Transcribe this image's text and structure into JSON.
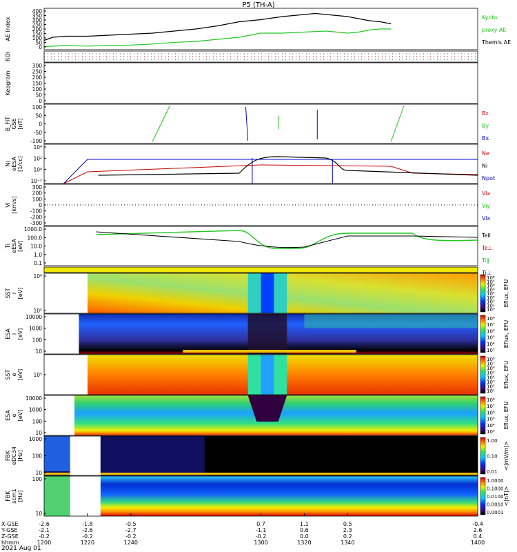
{
  "chart_data": {
    "type": "line",
    "title": "P5 (TH-A)",
    "date_label": "2021 Aug 01",
    "panels": [
      {
        "id": "ae",
        "ylabel": [
          "AE Index"
        ],
        "yticks": [
          "400",
          "350",
          "300",
          "250",
          "200",
          "150",
          "100",
          "50",
          "0"
        ],
        "legend": [
          {
            "text": "Kyoto",
            "color": "#1ec81e"
          },
          {
            "text": "proxy AE",
            "color": "#1ec81e"
          },
          {
            "text": "Themis AE",
            "color": "#000000"
          }
        ],
        "series": [
          {
            "name": "Themis AE",
            "color": "#000000",
            "x": [
              1200,
              1204,
              1210,
              1220,
              1230,
              1240,
              1250,
              1260,
              1270,
              1280,
              1290,
              1300,
              1310,
              1320,
              1325,
              1330,
              1340,
              1345,
              1350,
              1355,
              1360
            ],
            "y": [
              90,
              120,
              130,
              130,
              140,
              150,
              160,
              180,
              200,
              230,
              270,
              290,
              320,
              340,
              350,
              340,
              320,
              300,
              280,
              270,
              250
            ]
          },
          {
            "name": "Kyoto proxy AE",
            "color": "#1ec81e",
            "x": [
              1200,
              1210,
              1220,
              1230,
              1240,
              1250,
              1260,
              1270,
              1280,
              1290,
              1300,
              1310,
              1320,
              1330,
              1340,
              1345,
              1350,
              1355,
              1360
            ],
            "y": [
              30,
              40,
              35,
              40,
              45,
              55,
              70,
              80,
              100,
              120,
              160,
              160,
              170,
              180,
              160,
              170,
              190,
              200,
              200
            ]
          }
        ]
      },
      {
        "id": "roi",
        "ylabel": [
          "ROI"
        ],
        "yticks": []
      },
      {
        "id": "keogram",
        "ylabel": [
          "Keogram"
        ],
        "yticks": [
          "300",
          "250",
          "200",
          "150",
          "100",
          "50",
          "0"
        ]
      },
      {
        "id": "bfit",
        "ylabel": [
          "B_FIT",
          "GSE",
          "[nT]"
        ],
        "yticks": [
          "100",
          "50",
          "0",
          "-50",
          "-100"
        ],
        "legend": [
          {
            "text": "Bz",
            "color": "#cc0000"
          },
          {
            "text": "By",
            "color": "#1ec81e"
          },
          {
            "text": "Bx",
            "color": "#0000cc"
          }
        ]
      },
      {
        "id": "ni",
        "ylabel": [
          "Ni",
          "eESA",
          "[1/cc]"
        ],
        "yticks": [
          "10⁴",
          "10²",
          "10⁰",
          "10⁻²"
        ],
        "legend": [
          {
            "text": "Ne",
            "color": "#cc0000"
          },
          {
            "text": "Ni",
            "color": "#000000"
          },
          {
            "text": "Npot",
            "color": "#0000cc"
          }
        ]
      },
      {
        "id": "vi",
        "ylabel": [
          "Vi",
          "[km/s]"
        ],
        "yticks": [
          "300",
          "200",
          "100",
          "0",
          "-100",
          "-200",
          "-300"
        ],
        "legend": [
          {
            "text": "Vix",
            "color": "#cc0000"
          },
          {
            "text": "Viy",
            "color": "#1ec81e"
          },
          {
            "text": "Vix",
            "color": "#0000cc"
          }
        ]
      },
      {
        "id": "ti",
        "ylabel": [
          "Ti",
          "eESA",
          "[eV]"
        ],
        "yticks": [
          "1000.0",
          "100.0",
          "10.0",
          "1.0",
          "0.1"
        ],
        "legend": [
          {
            "text": "Tell",
            "color": "#000000"
          },
          {
            "text": "Te⊥",
            "color": "#cc0000"
          },
          {
            "text": "Ti‖",
            "color": "#1ec81e"
          },
          {
            "text": "Ti⊥",
            "color": "#0000cc"
          }
        ]
      },
      {
        "id": "sst_i",
        "ylabel": [
          "SST",
          "i",
          "[eV]"
        ],
        "yticks": [
          "10⁶",
          "10⁵"
        ],
        "cbar": {
          "ticks": [
            "10⁸",
            "10⁷",
            "10⁶",
            "10⁵",
            "10⁴",
            "10³",
            "10²",
            "10¹",
            "10⁰"
          ],
          "label": "Eflux, EFU"
        }
      },
      {
        "id": "esa_i",
        "ylabel": [
          "ESA",
          "i",
          "[eV]"
        ],
        "yticks": [
          "10000",
          "1000",
          "100",
          "10"
        ],
        "cbar": {
          "ticks": [
            "10⁸",
            "10⁷",
            "10⁶",
            "10⁵",
            "10⁴",
            "10³"
          ],
          "label": "Eflux, EFU"
        }
      },
      {
        "id": "sst_e",
        "ylabel": [
          "SST",
          "e",
          "[eV]"
        ],
        "yticks": [
          "10⁵"
        ],
        "cbar": {
          "ticks": [
            "10⁸",
            "10⁷",
            "10⁶",
            "10⁵",
            "10⁴",
            "10³",
            "10²",
            "10¹"
          ],
          "label": "Eflux, EFU"
        }
      },
      {
        "id": "esa_e",
        "ylabel": [
          "ESA",
          "e",
          "[eV]"
        ],
        "yticks": [
          "10000",
          "1000",
          "100",
          "10"
        ],
        "cbar": {
          "ticks": [
            "10⁸",
            "10⁷",
            "10⁶",
            "10⁵",
            "10⁴",
            "10³"
          ],
          "label": "Eflux, EFU"
        }
      },
      {
        "id": "fbk_edc",
        "ylabel": [
          "FBK",
          "eDC34",
          "[Hz]"
        ],
        "yticks": [
          "1000",
          "100",
          "10"
        ],
        "cbar": {
          "ticks": [
            "1.00",
            "0.10",
            "0.01"
          ],
          "label": "<|mV/m|>"
        }
      },
      {
        "id": "fbk_scm",
        "ylabel": [
          "FBK",
          "scm1",
          "[Hz]"
        ],
        "yticks": [
          "100",
          "10"
        ],
        "cbar": {
          "ticks": [
            "1.0000",
            "0.1000",
            "0.0100",
            "0.0010",
            "0.0001"
          ],
          "label": "<|nT|>"
        }
      }
    ],
    "x_axis": {
      "range": [
        1200,
        1400
      ],
      "rows": [
        {
          "label": "X-GSE",
          "values": [
            "-2.6",
            "-1.8",
            "-0.5",
            "0.7",
            "1.1",
            "0.5",
            "-0.4"
          ]
        },
        {
          "label": "Y-GSE",
          "values": [
            "-2.1",
            "-2.6",
            "-2.7",
            "-1.1",
            "0.6",
            "2.3",
            "2.6"
          ]
        },
        {
          "label": "Z-GSE",
          "values": [
            "-0.2",
            "-0.2",
            "-0.2",
            "-0.2",
            "0.0",
            "0.2",
            "0.4"
          ]
        },
        {
          "label": "hhmm",
          "values": [
            "1200",
            "1220",
            "1240",
            "1300",
            "1320",
            "1340",
            "1400"
          ]
        }
      ]
    }
  }
}
